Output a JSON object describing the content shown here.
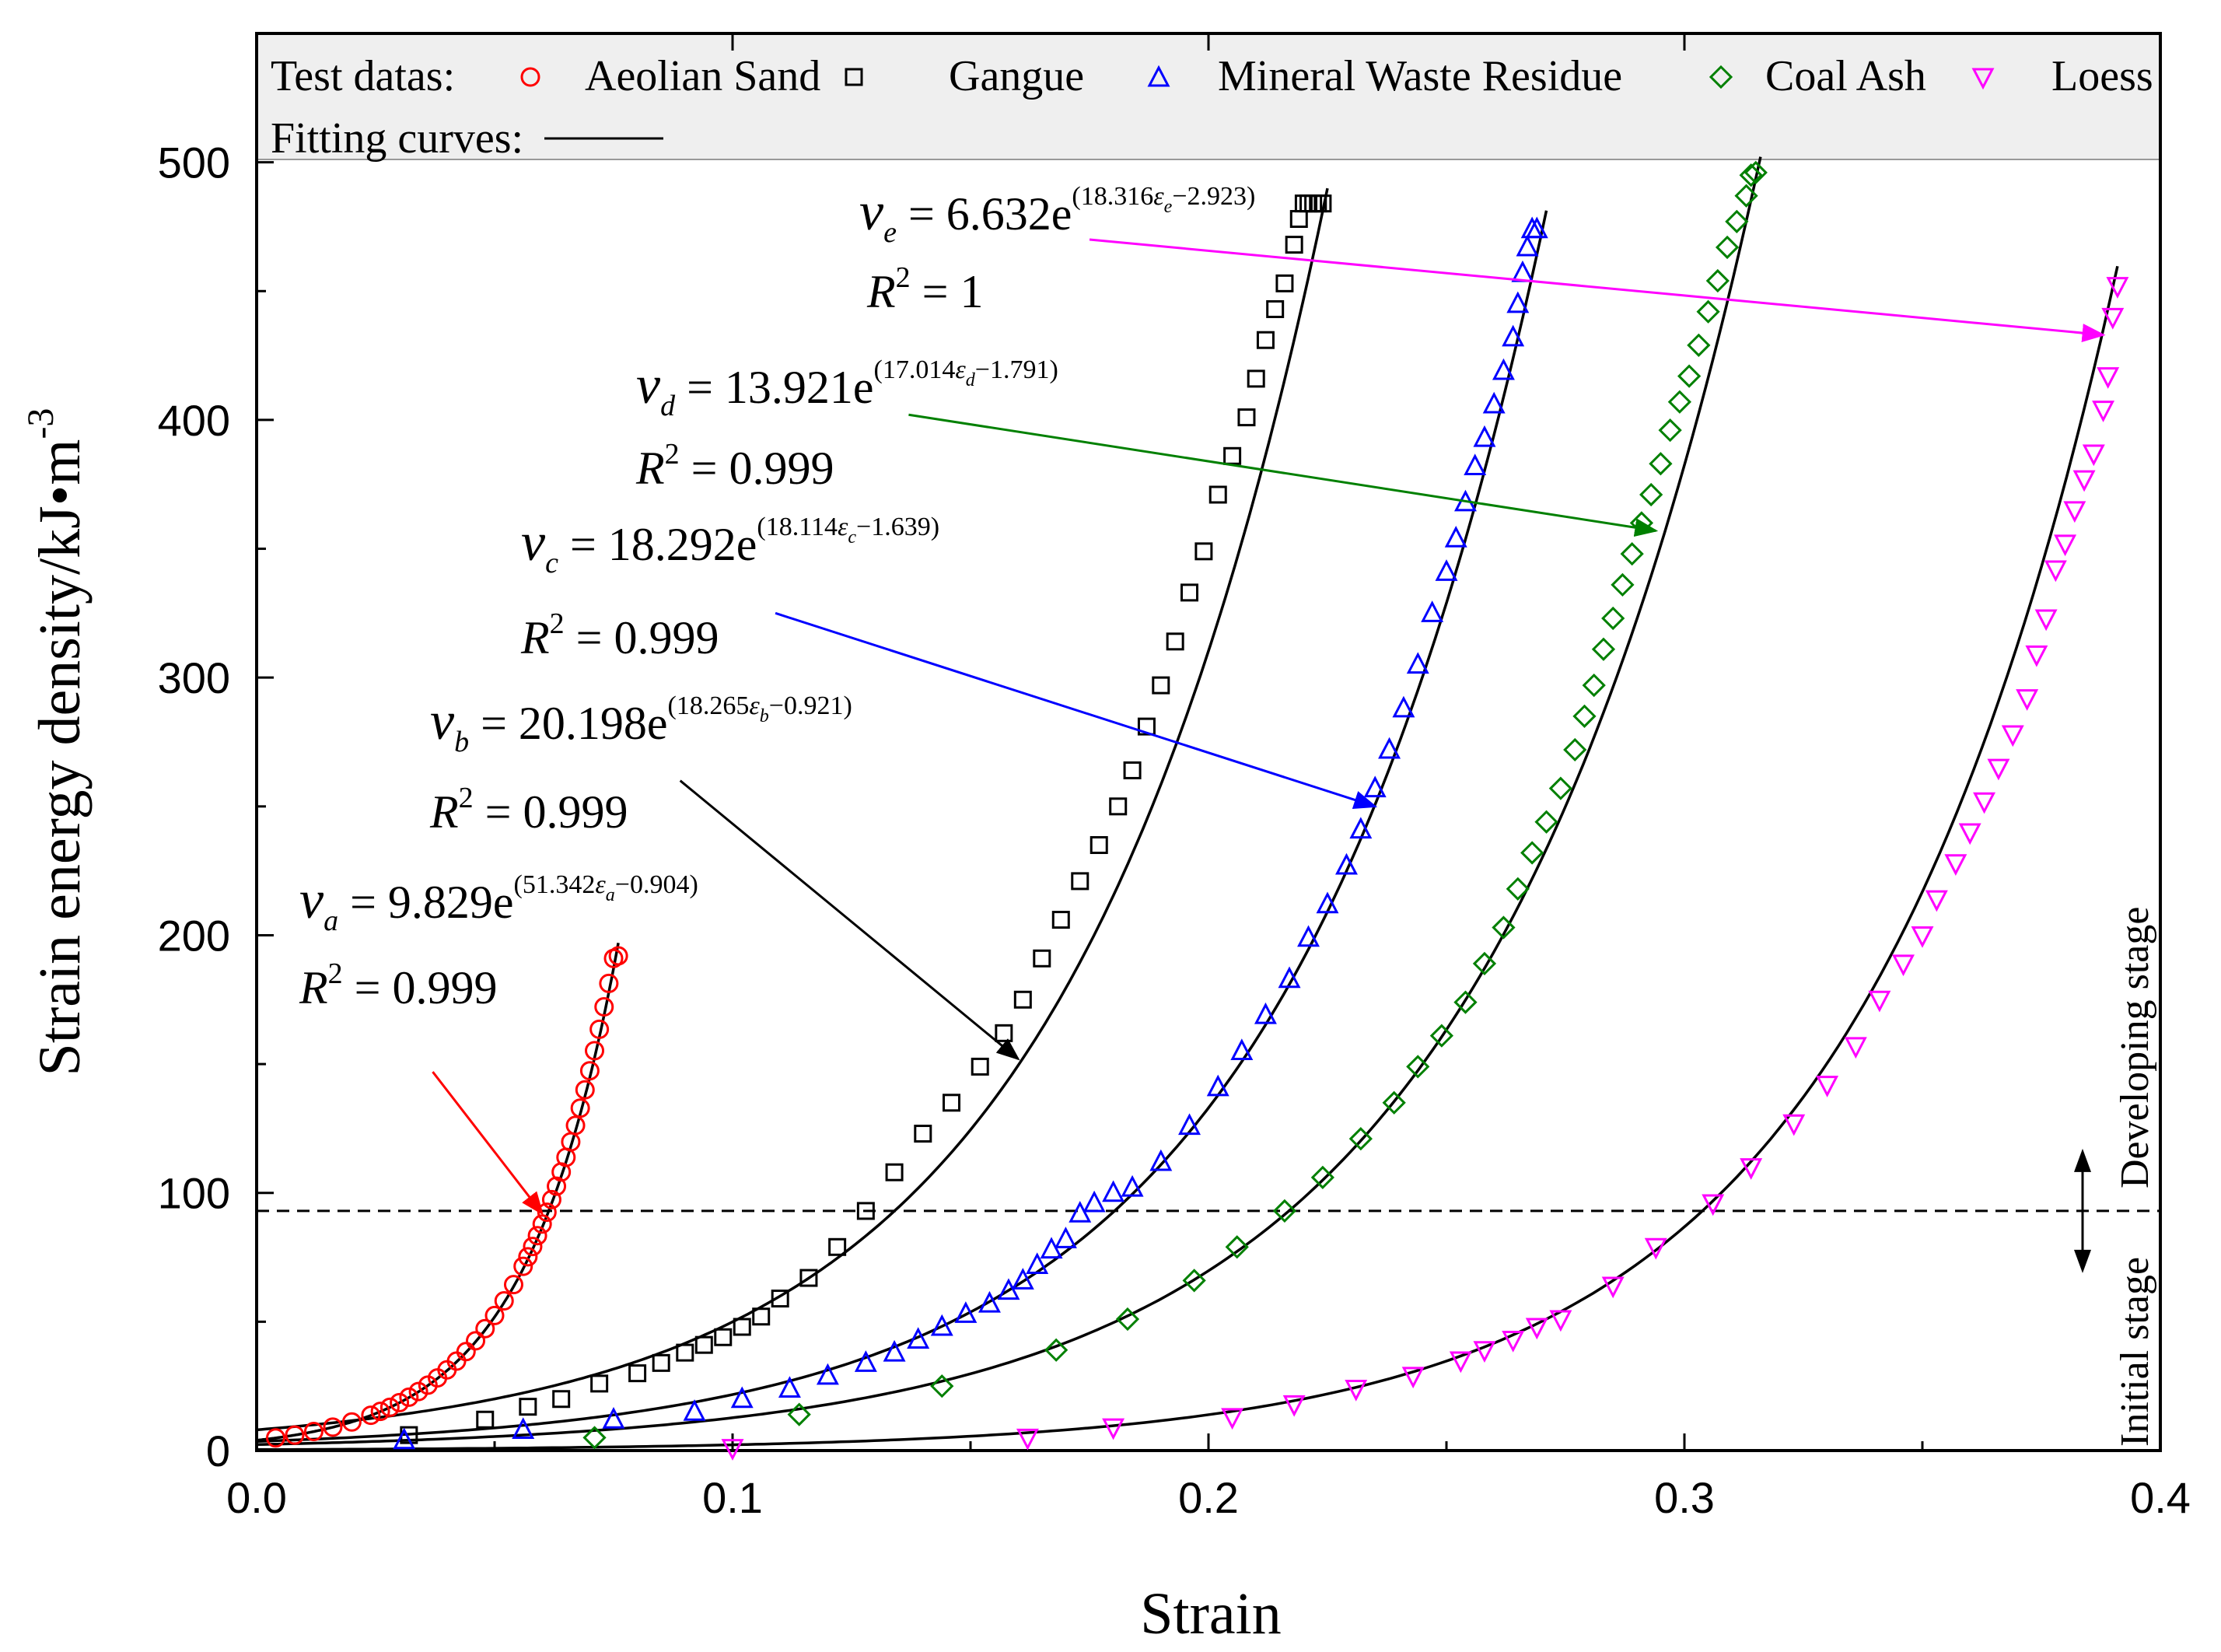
{
  "chart_data": {
    "type": "scatter",
    "title": "",
    "xlabel": "Strain",
    "ylabel": "Strain energy density/kJ•m",
    "ylabel_superscript": "-3",
    "xlim": [
      0.0,
      0.4
    ],
    "ylim": [
      0,
      550
    ],
    "xticks": [
      "0.0",
      "0.1",
      "0.2",
      "0.3",
      "0.4"
    ],
    "xtick_values": [
      0.0,
      0.1,
      0.2,
      0.3,
      0.4
    ],
    "yticks": [
      "0",
      "100",
      "200",
      "300",
      "400",
      "500"
    ],
    "ytick_values": [
      0,
      100,
      200,
      300,
      400,
      500
    ],
    "grid": false,
    "legend": {
      "placement": "top",
      "test_label": "Test datas:",
      "fit_label": "Fitting curves:",
      "entries": [
        "Aeolian Sand",
        "Gangue",
        "Mineral Waste Residue",
        "Coal Ash",
        "Loess"
      ]
    },
    "series": [
      {
        "name": "Aeolian Sand",
        "marker": "circle",
        "color": "#ff0000",
        "fit": {
          "A": 9.829,
          "k": 51.342,
          "c": 0.904,
          "x_start": 0.0,
          "x_end": 0.076
        },
        "x": [
          0.004,
          0.008,
          0.012,
          0.016,
          0.02,
          0.024,
          0.026,
          0.028,
          0.03,
          0.032,
          0.034,
          0.036,
          0.038,
          0.04,
          0.042,
          0.044,
          0.046,
          0.048,
          0.05,
          0.052,
          0.054,
          0.056,
          0.057,
          0.058,
          0.059,
          0.06,
          0.061,
          0.062,
          0.063,
          0.064,
          0.065,
          0.066,
          0.067,
          0.068,
          0.069,
          0.07,
          0.071,
          0.072,
          0.073,
          0.074,
          0.075,
          0.076
        ],
        "y": [
          4.9,
          6.0,
          7.4,
          9.1,
          11.1,
          13.7,
          15.2,
          16.8,
          18.6,
          20.7,
          22.9,
          25.4,
          28.2,
          31.3,
          34.7,
          38.4,
          42.6,
          47.3,
          52.4,
          58.1,
          64.4,
          71.5,
          75.2,
          79.2,
          83.4,
          87.9,
          92.5,
          97.4,
          102.6,
          108.1,
          113.8,
          119.8,
          126.2,
          132.9,
          140.0,
          147.4,
          155.2,
          163.5,
          172.2,
          181.3,
          191.0,
          192.0
        ]
      },
      {
        "name": "Gangue",
        "marker": "square",
        "color": "#000000",
        "fit": {
          "A": 20.198,
          "k": 18.265,
          "c": 0.921,
          "x_start": 0.0,
          "x_end": 0.225
        },
        "x": [
          0.032,
          0.048,
          0.057,
          0.064,
          0.072,
          0.08,
          0.085,
          0.09,
          0.094,
          0.098,
          0.102,
          0.106,
          0.11,
          0.116,
          0.122,
          0.128,
          0.134,
          0.14,
          0.146,
          0.152,
          0.157,
          0.161,
          0.165,
          0.169,
          0.173,
          0.177,
          0.181,
          0.184,
          0.187,
          0.19,
          0.193,
          0.196,
          0.199,
          0.202,
          0.205,
          0.208,
          0.21,
          0.212,
          0.214,
          0.216,
          0.218,
          0.219,
          0.22,
          0.221,
          0.222,
          0.223,
          0.224
        ],
        "y": [
          6,
          12,
          17,
          20,
          26,
          30,
          34,
          38,
          41,
          44,
          48,
          52,
          59,
          67,
          79,
          93,
          108,
          123,
          135,
          149,
          162,
          175,
          191,
          206,
          221,
          235,
          250,
          264,
          281,
          297,
          314,
          333,
          349,
          371,
          386,
          401,
          416,
          431,
          443,
          453,
          468,
          478,
          484,
          484,
          484,
          484,
          484
        ]
      },
      {
        "name": "Mineral Waste Residue",
        "marker": "triangle-up",
        "color": "#0000ff",
        "fit": {
          "A": 18.292,
          "k": 18.114,
          "c": 1.639,
          "x_start": 0.0,
          "x_end": 0.271
        },
        "x": [
          0.031,
          0.056,
          0.075,
          0.092,
          0.102,
          0.112,
          0.12,
          0.128,
          0.134,
          0.139,
          0.144,
          0.149,
          0.154,
          0.158,
          0.161,
          0.164,
          0.167,
          0.17,
          0.173,
          0.176,
          0.18,
          0.184,
          0.19,
          0.196,
          0.202,
          0.207,
          0.212,
          0.217,
          0.221,
          0.225,
          0.229,
          0.232,
          0.235,
          0.238,
          0.241,
          0.244,
          0.247,
          0.25,
          0.252,
          0.254,
          0.256,
          0.258,
          0.26,
          0.262,
          0.264,
          0.265,
          0.266,
          0.267,
          0.268,
          0.269
        ],
        "y": [
          4,
          8,
          12,
          15,
          20,
          24,
          29,
          34,
          38,
          43,
          48,
          53,
          57,
          62,
          66,
          72,
          78,
          82,
          92,
          96,
          100,
          102,
          112,
          126,
          141,
          155,
          169,
          183,
          199,
          212,
          227,
          241,
          257,
          272,
          288,
          305,
          325,
          341,
          354,
          368,
          382,
          393,
          406,
          419,
          432,
          445,
          457,
          467,
          474,
          474
        ]
      },
      {
        "name": "Coal Ash",
        "marker": "diamond",
        "color": "#008000",
        "fit": {
          "A": 13.921,
          "k": 17.014,
          "c": 1.791,
          "x_start": 0.0,
          "x_end": 0.316
        },
        "x": [
          0.071,
          0.114,
          0.144,
          0.168,
          0.183,
          0.197,
          0.206,
          0.216,
          0.224,
          0.232,
          0.239,
          0.244,
          0.249,
          0.254,
          0.258,
          0.262,
          0.265,
          0.268,
          0.271,
          0.274,
          0.277,
          0.279,
          0.281,
          0.283,
          0.285,
          0.287,
          0.289,
          0.291,
          0.293,
          0.295,
          0.297,
          0.299,
          0.301,
          0.303,
          0.305,
          0.307,
          0.309,
          0.311,
          0.313,
          0.314,
          0.315
        ],
        "y": [
          5,
          14,
          25,
          39,
          51,
          66,
          79,
          93,
          106,
          121,
          135,
          149,
          161,
          174,
          189,
          203,
          218,
          232,
          244,
          257,
          272,
          285,
          297,
          311,
          323,
          336,
          348,
          360,
          371,
          383,
          396,
          407,
          417,
          429,
          442,
          454,
          467,
          477,
          487,
          495,
          496
        ]
      },
      {
        "name": "Loess",
        "marker": "triangle-down",
        "color": "#ff00ff",
        "fit": {
          "A": 6.632,
          "k": 18.316,
          "c": 2.923,
          "x_start": 0.0,
          "x_end": 0.391
        },
        "x": [
          0.1,
          0.162,
          0.18,
          0.205,
          0.218,
          0.231,
          0.243,
          0.253,
          0.258,
          0.264,
          0.269,
          0.274,
          0.285,
          0.294,
          0.306,
          0.314,
          0.323,
          0.33,
          0.336,
          0.341,
          0.346,
          0.35,
          0.353,
          0.357,
          0.36,
          0.363,
          0.366,
          0.369,
          0.372,
          0.374,
          0.376,
          0.378,
          0.38,
          0.382,
          0.384,
          0.386,
          0.388,
          0.389,
          0.39,
          0.391
        ],
        "y": [
          1,
          5,
          9,
          13,
          18,
          24,
          29,
          35,
          39,
          43,
          48,
          51,
          64,
          79,
          96,
          110,
          127,
          142,
          157,
          175,
          189,
          200,
          214,
          228,
          240,
          252,
          265,
          278,
          292,
          309,
          323,
          342,
          352,
          365,
          377,
          387,
          404,
          417,
          440,
          452
        ]
      }
    ],
    "annotations": {
      "equations": [
        {
          "id": "e",
          "symbol": "ν",
          "sub": "e",
          "eq": " = 6.632e",
          "exp_open": "(18.316",
          "eps": "ε",
          "exp_close": "−2.923)",
          "r2_label": "R",
          "r2_sup": "2",
          "r2_val": " = 1",
          "color": "#ff00ff",
          "arrow_from": [
            0.175,
            470
          ],
          "arrow_to": [
            0.388,
            433
          ]
        },
        {
          "id": "d",
          "symbol": "ν",
          "sub": "d",
          "eq": " = 13.921e",
          "exp_open": "(17.014",
          "eps": "ε",
          "exp_close": "−1.791)",
          "r2_label": "R",
          "r2_sup": "2",
          "r2_val": " = 0.999",
          "color": "#008000",
          "arrow_from": [
            0.137,
            402
          ],
          "arrow_to": [
            0.294,
            357
          ]
        },
        {
          "id": "c",
          "symbol": "ν",
          "sub": "c",
          "eq": " = 18.292e",
          "exp_open": "(18.114",
          "eps": "ε",
          "exp_close": "−1.639)",
          "r2_label": "R",
          "r2_sup": "2",
          "r2_val": " = 0.999",
          "color": "#0000ff",
          "arrow_from": [
            0.109,
            325
          ],
          "arrow_to": [
            0.235,
            250
          ]
        },
        {
          "id": "b",
          "symbol": "ν",
          "sub": "b",
          "eq": " = 20.198e",
          "exp_open": "(18.265",
          "eps": "ε",
          "exp_close": "−0.921)",
          "r2_label": "R",
          "r2_sup": "2",
          "r2_val": " = 0.999",
          "color": "#000000",
          "arrow_from": [
            0.089,
            260
          ],
          "arrow_to": [
            0.16,
            152
          ]
        },
        {
          "id": "a",
          "symbol": "ν",
          "sub": "a",
          "eq": " = 9.829e",
          "exp_open": "(51.342",
          "eps": "ε",
          "exp_close": "−0.904)",
          "r2_label": "R",
          "r2_sup": "2",
          "r2_val": " = 0.999",
          "color": "#ff0000",
          "arrow_from": [
            0.037,
            147
          ],
          "arrow_to": [
            0.06,
            92
          ]
        }
      ],
      "threshold_line": {
        "y": 93,
        "style": "dashed"
      },
      "stages": {
        "initial": "Initial stage",
        "developing": "Developing stage"
      }
    }
  }
}
